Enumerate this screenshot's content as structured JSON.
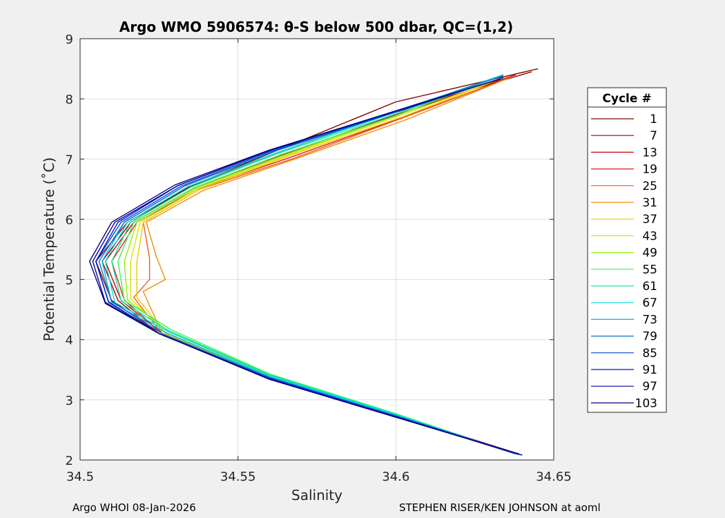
{
  "chart_data": {
    "type": "line",
    "title": "Argo WMO 5906574: θ-S below 500 dbar,  QC=(1,2)",
    "xlabel": "Salinity",
    "ylabel": "Potential Temperature (˚C)",
    "xlim": [
      34.5,
      34.65
    ],
    "ylim": [
      2,
      9
    ],
    "xticks": [
      34.5,
      34.55,
      34.6,
      34.65
    ],
    "xtick_labels": [
      "34.5",
      "34.55",
      "34.6",
      "34.65"
    ],
    "yticks": [
      2,
      3,
      4,
      5,
      6,
      7,
      8,
      9
    ],
    "ytick_labels": [
      "2",
      "3",
      "4",
      "5",
      "6",
      "7",
      "8",
      "9"
    ],
    "grid": true,
    "legend": {
      "title": "Cycle #",
      "placement": "outside-right",
      "entries": [
        "1",
        "7",
        "13",
        "19",
        "25",
        "31",
        "37",
        "43",
        "49",
        "55",
        "61",
        "67",
        "73",
        "79",
        "85",
        "91",
        "97",
        "103"
      ]
    },
    "series": [
      {
        "name": "1",
        "color": "#800000",
        "points": [
          [
            34.639,
            2.1
          ],
          [
            34.6,
            2.72
          ],
          [
            34.56,
            3.35
          ],
          [
            34.525,
            4.1
          ],
          [
            34.51,
            4.65
          ],
          [
            34.505,
            5.3
          ],
          [
            34.515,
            5.95
          ],
          [
            34.535,
            6.55
          ],
          [
            34.565,
            7.2
          ],
          [
            34.6,
            7.95
          ],
          [
            34.645,
            8.5
          ]
        ]
      },
      {
        "name": "7",
        "color": "#9a0000",
        "points": [
          [
            34.639,
            2.1
          ],
          [
            34.6,
            2.73
          ],
          [
            34.56,
            3.36
          ],
          [
            34.525,
            4.1
          ],
          [
            34.512,
            4.65
          ],
          [
            34.507,
            5.3
          ],
          [
            34.516,
            5.95
          ],
          [
            34.535,
            6.55
          ],
          [
            34.562,
            7.1
          ],
          [
            34.595,
            7.7
          ],
          [
            34.643,
            8.45
          ]
        ]
      },
      {
        "name": "13",
        "color": "#c80000",
        "points": [
          [
            34.639,
            2.1
          ],
          [
            34.6,
            2.74
          ],
          [
            34.56,
            3.37
          ],
          [
            34.526,
            4.1
          ],
          [
            34.513,
            4.65
          ],
          [
            34.508,
            5.3
          ],
          [
            34.517,
            5.95
          ],
          [
            34.536,
            6.52
          ],
          [
            34.563,
            7.05
          ],
          [
            34.598,
            7.7
          ],
          [
            34.638,
            8.4
          ]
        ]
      },
      {
        "name": "19",
        "color": "#e31a1c",
        "points": [
          [
            34.639,
            2.1
          ],
          [
            34.6,
            2.75
          ],
          [
            34.56,
            3.38
          ],
          [
            34.526,
            4.1
          ],
          [
            34.514,
            4.66
          ],
          [
            34.51,
            5.3
          ],
          [
            34.518,
            5.95
          ],
          [
            34.537,
            6.5
          ],
          [
            34.565,
            7.0
          ],
          [
            34.6,
            7.65
          ],
          [
            34.636,
            8.35
          ]
        ]
      },
      {
        "name": "25",
        "color": "#f05a1a",
        "points": [
          [
            34.638,
            2.1
          ],
          [
            34.6,
            2.73
          ],
          [
            34.56,
            3.36
          ],
          [
            34.526,
            4.1
          ],
          [
            34.517,
            4.7
          ],
          [
            34.522,
            5.0
          ],
          [
            34.522,
            5.35
          ],
          [
            34.52,
            5.95
          ],
          [
            34.538,
            6.5
          ],
          [
            34.567,
            7.0
          ],
          [
            34.603,
            7.7
          ],
          [
            34.636,
            8.35
          ]
        ]
      },
      {
        "name": "31",
        "color": "#f08c00",
        "points": [
          [
            34.638,
            2.1
          ],
          [
            34.6,
            2.73
          ],
          [
            34.56,
            3.36
          ],
          [
            34.526,
            4.1
          ],
          [
            34.52,
            4.8
          ],
          [
            34.527,
            5.0
          ],
          [
            34.524,
            5.4
          ],
          [
            34.521,
            5.95
          ],
          [
            34.539,
            6.48
          ],
          [
            34.568,
            7.0
          ],
          [
            34.603,
            7.65
          ],
          [
            34.636,
            8.35
          ]
        ]
      },
      {
        "name": "37",
        "color": "#f5c400",
        "points": [
          [
            34.638,
            2.1
          ],
          [
            34.6,
            2.74
          ],
          [
            34.56,
            3.37
          ],
          [
            34.527,
            4.1
          ],
          [
            34.518,
            4.7
          ],
          [
            34.518,
            5.3
          ],
          [
            34.52,
            5.95
          ],
          [
            34.538,
            6.5
          ],
          [
            34.566,
            7.05
          ],
          [
            34.602,
            7.7
          ],
          [
            34.634,
            8.35
          ]
        ]
      },
      {
        "name": "43",
        "color": "#d4e600",
        "points": [
          [
            34.638,
            2.1
          ],
          [
            34.6,
            2.75
          ],
          [
            34.56,
            3.39
          ],
          [
            34.527,
            4.12
          ],
          [
            34.516,
            4.68
          ],
          [
            34.516,
            5.3
          ],
          [
            34.519,
            5.95
          ],
          [
            34.537,
            6.5
          ],
          [
            34.565,
            7.05
          ],
          [
            34.6,
            7.7
          ],
          [
            34.634,
            8.35
          ]
        ]
      },
      {
        "name": "49",
        "color": "#8ef200",
        "points": [
          [
            34.638,
            2.1
          ],
          [
            34.6,
            2.76
          ],
          [
            34.56,
            3.41
          ],
          [
            34.528,
            4.14
          ],
          [
            34.515,
            4.66
          ],
          [
            34.514,
            5.3
          ],
          [
            34.518,
            5.95
          ],
          [
            34.536,
            6.5
          ],
          [
            34.564,
            7.05
          ],
          [
            34.6,
            7.72
          ],
          [
            34.634,
            8.4
          ]
        ]
      },
      {
        "name": "55",
        "color": "#3cf05a",
        "points": [
          [
            34.638,
            2.1
          ],
          [
            34.6,
            2.77
          ],
          [
            34.56,
            3.43
          ],
          [
            34.529,
            4.16
          ],
          [
            34.514,
            4.65
          ],
          [
            34.512,
            5.3
          ],
          [
            34.517,
            5.95
          ],
          [
            34.536,
            6.52
          ],
          [
            34.564,
            7.08
          ],
          [
            34.6,
            7.72
          ],
          [
            34.634,
            8.4
          ]
        ]
      },
      {
        "name": "61",
        "color": "#14e6a0",
        "points": [
          [
            34.638,
            2.1
          ],
          [
            34.6,
            2.76
          ],
          [
            34.56,
            3.42
          ],
          [
            34.528,
            4.15
          ],
          [
            34.513,
            4.64
          ],
          [
            34.51,
            5.3
          ],
          [
            34.516,
            5.95
          ],
          [
            34.535,
            6.53
          ],
          [
            34.563,
            7.1
          ],
          [
            34.6,
            7.75
          ],
          [
            34.634,
            8.4
          ]
        ]
      },
      {
        "name": "67",
        "color": "#00dcdc",
        "points": [
          [
            34.638,
            2.1
          ],
          [
            34.6,
            2.75
          ],
          [
            34.56,
            3.4
          ],
          [
            34.528,
            4.13
          ],
          [
            34.511,
            4.62
          ],
          [
            34.508,
            5.3
          ],
          [
            34.515,
            5.95
          ],
          [
            34.534,
            6.54
          ],
          [
            34.562,
            7.1
          ],
          [
            34.6,
            7.78
          ],
          [
            34.634,
            8.4
          ]
        ]
      },
      {
        "name": "73",
        "color": "#00b4dc",
        "points": [
          [
            34.638,
            2.1
          ],
          [
            34.6,
            2.74
          ],
          [
            34.56,
            3.38
          ],
          [
            34.527,
            4.12
          ],
          [
            34.51,
            4.62
          ],
          [
            34.507,
            5.3
          ],
          [
            34.514,
            5.95
          ],
          [
            34.533,
            6.55
          ],
          [
            34.561,
            7.12
          ],
          [
            34.6,
            7.78
          ],
          [
            34.634,
            8.4
          ]
        ]
      },
      {
        "name": "79",
        "color": "#0073c8",
        "points": [
          [
            34.639,
            2.1
          ],
          [
            34.6,
            2.73
          ],
          [
            34.56,
            3.37
          ],
          [
            34.526,
            4.1
          ],
          [
            34.51,
            4.63
          ],
          [
            34.506,
            5.3
          ],
          [
            34.514,
            5.95
          ],
          [
            34.533,
            6.55
          ],
          [
            34.561,
            7.12
          ],
          [
            34.6,
            7.8
          ],
          [
            34.634,
            8.38
          ]
        ]
      },
      {
        "name": "85",
        "color": "#0040d8",
        "points": [
          [
            34.639,
            2.1
          ],
          [
            34.6,
            2.73
          ],
          [
            34.56,
            3.36
          ],
          [
            34.525,
            4.1
          ],
          [
            34.509,
            4.63
          ],
          [
            34.505,
            5.3
          ],
          [
            34.513,
            5.95
          ],
          [
            34.532,
            6.55
          ],
          [
            34.56,
            7.12
          ],
          [
            34.6,
            7.78
          ],
          [
            34.634,
            8.35
          ]
        ]
      },
      {
        "name": "91",
        "color": "#0010c8",
        "points": [
          [
            34.639,
            2.09
          ],
          [
            34.6,
            2.72
          ],
          [
            34.56,
            3.35
          ],
          [
            34.525,
            4.1
          ],
          [
            34.509,
            4.62
          ],
          [
            34.505,
            5.3
          ],
          [
            34.512,
            5.95
          ],
          [
            34.531,
            6.56
          ],
          [
            34.56,
            7.14
          ],
          [
            34.6,
            7.8
          ],
          [
            34.633,
            8.33
          ]
        ]
      },
      {
        "name": "97",
        "color": "#0000a0",
        "points": [
          [
            34.64,
            2.08
          ],
          [
            34.6,
            2.71
          ],
          [
            34.56,
            3.34
          ],
          [
            34.525,
            4.1
          ],
          [
            34.508,
            4.62
          ],
          [
            34.504,
            5.3
          ],
          [
            34.511,
            5.95
          ],
          [
            34.531,
            6.56
          ],
          [
            34.56,
            7.14
          ],
          [
            34.6,
            7.8
          ],
          [
            34.633,
            8.33
          ]
        ]
      },
      {
        "name": "103",
        "color": "#000080",
        "points": [
          [
            34.64,
            2.08
          ],
          [
            34.6,
            2.71
          ],
          [
            34.56,
            3.34
          ],
          [
            34.525,
            4.1
          ],
          [
            34.508,
            4.6
          ],
          [
            34.503,
            5.3
          ],
          [
            34.51,
            5.95
          ],
          [
            34.53,
            6.57
          ],
          [
            34.56,
            7.15
          ],
          [
            34.6,
            7.8
          ],
          [
            34.633,
            8.33
          ]
        ]
      }
    ]
  },
  "footer": {
    "left": "Argo WHOI 08-Jan-2026",
    "right": "STEPHEN RISER/KEN JOHNSON at aoml"
  }
}
